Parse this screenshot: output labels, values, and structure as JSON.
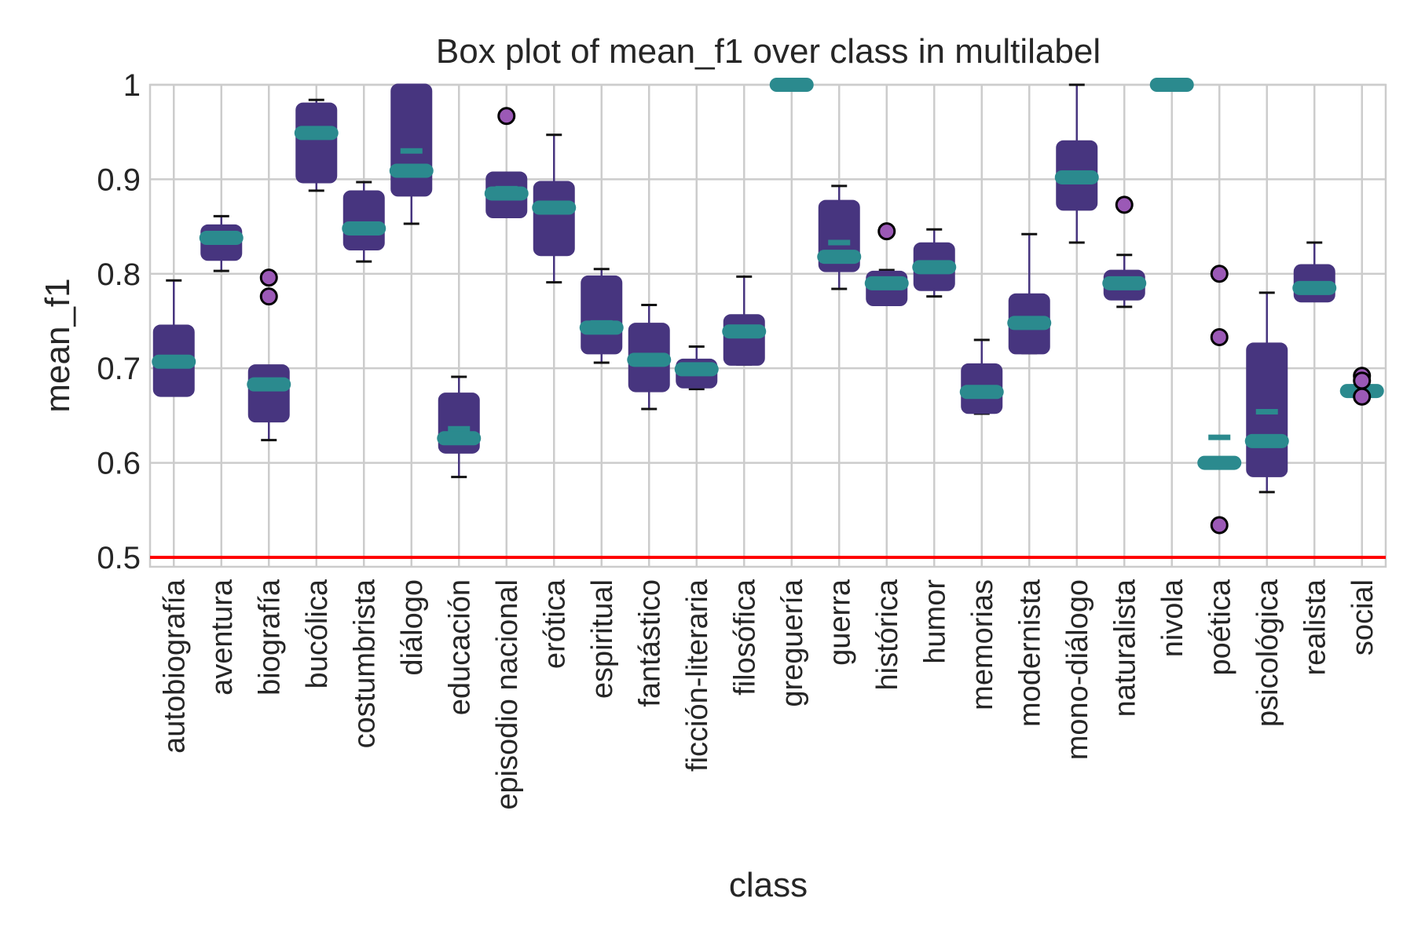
{
  "chart_data": {
    "type": "box",
    "title": "Box plot of mean_f1 over class in multilabel",
    "x_label": "class",
    "y_label": "mean_f1",
    "categories": [
      "autobiografía",
      "aventura",
      "biografía",
      "bucólica",
      "costumbrista",
      "diálogo",
      "educación",
      "episodio nacional",
      "erótica",
      "espiritual",
      "fantástico",
      "ficción-literaria",
      "filosófica",
      "greguería",
      "guerra",
      "histórica",
      "humor",
      "memorias",
      "modernista",
      "mono-diálogo",
      "naturalista",
      "nivola",
      "poética",
      "psicológica",
      "realista",
      "social"
    ],
    "whislo": [
      0.674,
      0.803,
      0.624,
      0.888,
      0.813,
      0.853,
      0.585,
      0.867,
      0.791,
      0.706,
      0.657,
      0.678,
      0.704,
      1.0,
      0.784,
      0.769,
      0.776,
      0.652,
      0.716,
      0.833,
      0.765,
      1.0,
      0.6,
      0.569,
      0.773,
      0.676
    ],
    "q1": [
      0.671,
      0.815,
      0.644,
      0.897,
      0.826,
      0.883,
      0.611,
      0.86,
      0.82,
      0.716,
      0.676,
      0.68,
      0.704,
      1.0,
      0.803,
      0.767,
      0.783,
      0.653,
      0.716,
      0.868,
      0.773,
      1.0,
      0.6,
      0.586,
      0.771,
      0.674
    ],
    "median": [
      0.707,
      0.838,
      0.683,
      0.949,
      0.848,
      0.909,
      0.626,
      0.885,
      0.87,
      0.743,
      0.709,
      0.699,
      0.739,
      1.0,
      0.818,
      0.79,
      0.807,
      0.675,
      0.748,
      0.902,
      0.79,
      1.0,
      0.6,
      0.623,
      0.785,
      0.676
    ],
    "q3": [
      0.745,
      0.851,
      0.703,
      0.98,
      0.887,
      1.0,
      0.673,
      0.907,
      0.897,
      0.797,
      0.747,
      0.709,
      0.756,
      1.0,
      0.877,
      0.802,
      0.832,
      0.704,
      0.778,
      0.94,
      0.803,
      1.0,
      0.6,
      0.726,
      0.809,
      0.678
    ],
    "whishi": [
      0.793,
      0.861,
      0.697,
      0.984,
      0.897,
      1.0,
      0.691,
      0.9,
      0.947,
      0.805,
      0.767,
      0.723,
      0.797,
      1.0,
      0.893,
      0.804,
      0.847,
      0.73,
      0.842,
      1.0,
      0.82,
      1.0,
      0.6,
      0.78,
      0.833,
      0.678
    ],
    "mean": [
      0.71,
      0.836,
      0.685,
      0.945,
      0.852,
      0.93,
      0.636,
      0.89,
      0.868,
      0.748,
      0.71,
      0.697,
      0.737,
      1.0,
      0.833,
      0.787,
      0.806,
      0.673,
      0.747,
      0.9,
      0.788,
      1.0,
      0.627,
      0.654,
      0.782,
      0.676
    ],
    "fliers": [
      [],
      [],
      [
        0.796,
        0.776
      ],
      [],
      [],
      [],
      [],
      [
        0.967
      ],
      [],
      [],
      [],
      [],
      [],
      [],
      [],
      [
        0.845
      ],
      [],
      [],
      [],
      [],
      [
        0.873
      ],
      [],
      [
        0.8,
        0.733,
        0.534
      ],
      [],
      [],
      [
        0.692,
        0.687,
        0.67
      ]
    ],
    "box_color": "#47357f",
    "median_color": "#2b8a8e",
    "flier_color": "#9b59b6",
    "hline": {
      "value": 0.5,
      "color": "#ff0000"
    },
    "ylim": [
      0.49,
      1.0
    ],
    "yticks": [
      0.5,
      0.6,
      0.7,
      0.8,
      0.9,
      1.0
    ],
    "grid": true
  }
}
